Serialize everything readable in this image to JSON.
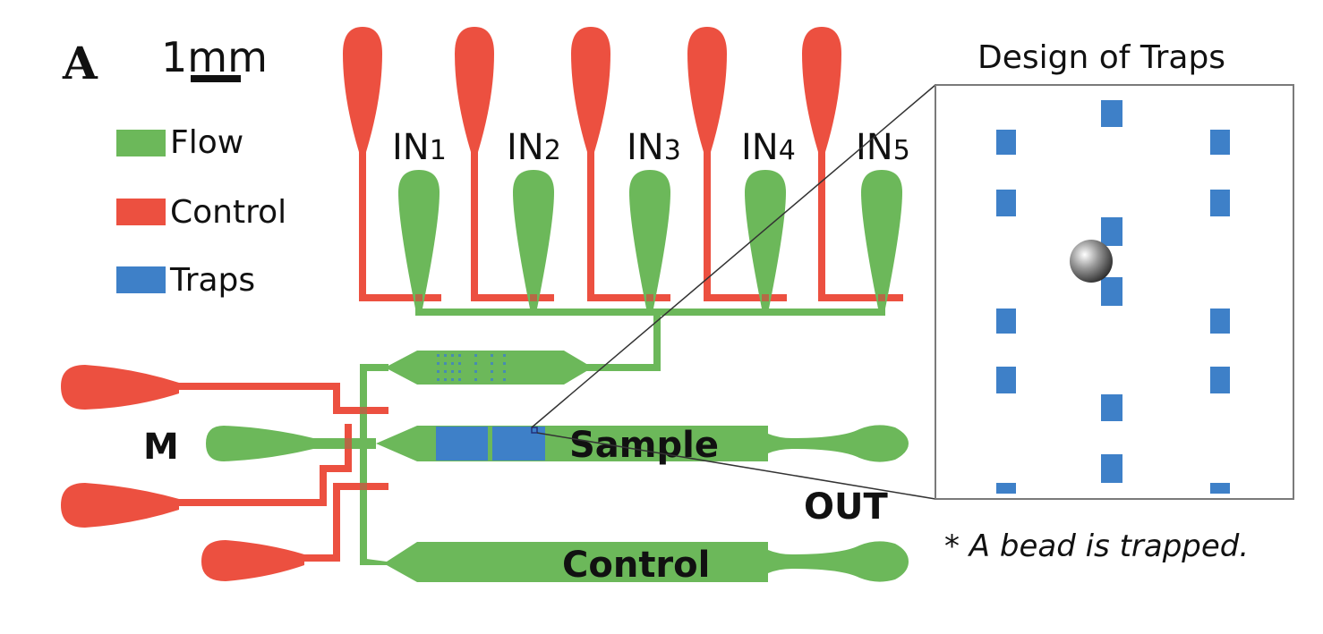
{
  "panel_label": "A",
  "scale_bar": {
    "label": "1mm"
  },
  "legend": {
    "items": [
      {
        "label": "Flow",
        "color": "#6cb85a"
      },
      {
        "label": "Control",
        "color": "#ec5040"
      },
      {
        "label": "Traps",
        "color": "#3e80c8"
      }
    ]
  },
  "inlets": [
    {
      "base": "IN",
      "sub": "1"
    },
    {
      "base": "IN",
      "sub": "2"
    },
    {
      "base": "IN",
      "sub": "3"
    },
    {
      "base": "IN",
      "sub": "4"
    },
    {
      "base": "IN",
      "sub": "5"
    }
  ],
  "channel_labels": {
    "mix": "M",
    "sample": "Sample",
    "control": "Control",
    "outlet": "OUT"
  },
  "inset": {
    "title": "Design of Traps",
    "note": "* A bead is trapped."
  },
  "colors": {
    "flow": "#6cb85a",
    "control": "#ec5040",
    "traps": "#3e80c8",
    "border": "#7a7a7a"
  }
}
